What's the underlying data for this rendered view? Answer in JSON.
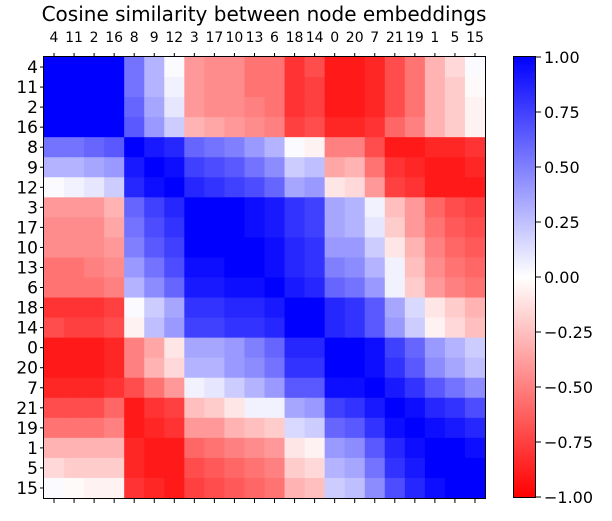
{
  "chart_data": {
    "type": "heatmap",
    "title": "Cosine similarity between node embeddings",
    "xlabel": "",
    "ylabel": "",
    "x_labels": [
      "4",
      "11",
      "2",
      "16",
      "8",
      "9",
      "12",
      "3",
      "17",
      "10",
      "13",
      "6",
      "18",
      "14",
      "0",
      "20",
      "7",
      "21",
      "19",
      "1",
      "5",
      "15"
    ],
    "y_labels": [
      "4",
      "11",
      "2",
      "16",
      "8",
      "9",
      "12",
      "3",
      "17",
      "10",
      "13",
      "6",
      "18",
      "14",
      "0",
      "20",
      "7",
      "21",
      "19",
      "1",
      "5",
      "15"
    ],
    "vmin": -1.0,
    "vmax": 1.0,
    "colormap": "bwr_r (blue = 1, white = 0, red = -1)",
    "colorbar_ticks": [
      "1.00",
      "0.75",
      "0.50",
      "0.25",
      "0.00",
      "−0.25",
      "−0.50",
      "−0.75",
      "−1.00"
    ],
    "colorbar_tick_values": [
      1.0,
      0.75,
      0.5,
      0.25,
      0.0,
      -0.25,
      -0.5,
      -0.75,
      -1.0
    ],
    "values": [
      [
        1.0,
        1.0,
        1.0,
        1.0,
        0.55,
        0.3,
        0.02,
        -0.4,
        -0.45,
        -0.45,
        -0.55,
        -0.55,
        -0.8,
        -0.7,
        -0.9,
        -0.9,
        -0.85,
        -0.7,
        -0.55,
        -0.3,
        -0.15,
        0.02
      ],
      [
        1.0,
        1.0,
        1.0,
        1.0,
        0.55,
        0.3,
        0.05,
        -0.4,
        -0.45,
        -0.45,
        -0.55,
        -0.55,
        -0.8,
        -0.75,
        -0.9,
        -0.9,
        -0.85,
        -0.7,
        -0.55,
        -0.3,
        -0.2,
        -0.02
      ],
      [
        1.0,
        1.0,
        1.0,
        1.0,
        0.6,
        0.35,
        0.1,
        -0.4,
        -0.45,
        -0.45,
        -0.5,
        -0.55,
        -0.8,
        -0.75,
        -0.9,
        -0.9,
        -0.85,
        -0.7,
        -0.55,
        -0.3,
        -0.2,
        -0.05
      ],
      [
        1.0,
        1.0,
        1.0,
        1.0,
        0.65,
        0.4,
        0.2,
        -0.3,
        -0.35,
        -0.4,
        -0.45,
        -0.5,
        -0.75,
        -0.7,
        -0.85,
        -0.85,
        -0.8,
        -0.6,
        -0.5,
        -0.3,
        -0.2,
        -0.05
      ],
      [
        0.55,
        0.55,
        0.6,
        0.65,
        1.0,
        0.9,
        0.85,
        0.6,
        0.55,
        0.5,
        0.4,
        0.3,
        0.02,
        -0.05,
        -0.5,
        -0.5,
        -0.7,
        -0.9,
        -0.9,
        -0.85,
        -0.85,
        -0.8
      ],
      [
        0.3,
        0.3,
        0.35,
        0.4,
        0.9,
        1.0,
        0.95,
        0.75,
        0.7,
        0.65,
        0.55,
        0.45,
        0.2,
        0.25,
        -0.35,
        -0.3,
        -0.55,
        -0.8,
        -0.85,
        -0.9,
        -0.9,
        -0.85
      ],
      [
        0.02,
        0.05,
        0.1,
        0.2,
        0.85,
        0.95,
        1.0,
        0.85,
        0.8,
        0.75,
        0.7,
        0.6,
        0.35,
        0.4,
        -0.1,
        -0.15,
        -0.4,
        -0.75,
        -0.8,
        -0.9,
        -0.9,
        -0.9
      ],
      [
        -0.4,
        -0.4,
        -0.4,
        -0.3,
        0.6,
        0.75,
        0.85,
        1.0,
        1.0,
        1.0,
        0.95,
        0.9,
        0.8,
        0.75,
        0.35,
        0.3,
        0.05,
        -0.25,
        -0.4,
        -0.6,
        -0.7,
        -0.75
      ],
      [
        -0.45,
        -0.45,
        -0.45,
        -0.35,
        0.55,
        0.7,
        0.8,
        1.0,
        1.0,
        1.0,
        0.95,
        0.9,
        0.8,
        0.75,
        0.35,
        0.3,
        0.1,
        -0.2,
        -0.4,
        -0.55,
        -0.65,
        -0.7
      ],
      [
        -0.45,
        -0.45,
        -0.45,
        -0.4,
        0.5,
        0.65,
        0.75,
        1.0,
        1.0,
        1.0,
        1.0,
        0.95,
        0.85,
        0.8,
        0.4,
        0.4,
        0.2,
        -0.1,
        -0.3,
        -0.5,
        -0.6,
        -0.65
      ],
      [
        -0.55,
        -0.55,
        -0.5,
        -0.45,
        0.4,
        0.55,
        0.7,
        0.95,
        0.95,
        1.0,
        1.0,
        0.95,
        0.85,
        0.8,
        0.5,
        0.45,
        0.3,
        0.05,
        -0.25,
        -0.45,
        -0.55,
        -0.6
      ],
      [
        -0.55,
        -0.55,
        -0.55,
        -0.5,
        0.3,
        0.45,
        0.6,
        0.9,
        0.9,
        0.95,
        0.95,
        1.0,
        0.9,
        0.85,
        0.6,
        0.55,
        0.4,
        0.05,
        -0.2,
        -0.4,
        -0.5,
        -0.55
      ],
      [
        -0.8,
        -0.8,
        -0.8,
        -0.75,
        0.02,
        0.2,
        0.35,
        0.8,
        0.8,
        0.85,
        0.85,
        0.9,
        1.0,
        1.0,
        0.85,
        0.8,
        0.65,
        0.35,
        0.15,
        -0.1,
        -0.2,
        -0.3
      ],
      [
        -0.7,
        -0.75,
        -0.75,
        -0.7,
        -0.05,
        0.25,
        0.4,
        0.75,
        0.75,
        0.8,
        0.8,
        0.85,
        1.0,
        1.0,
        0.85,
        0.8,
        0.65,
        0.4,
        0.2,
        -0.05,
        -0.15,
        -0.25
      ],
      [
        -0.9,
        -0.9,
        -0.9,
        -0.85,
        -0.5,
        -0.35,
        -0.1,
        0.35,
        0.35,
        0.4,
        0.5,
        0.6,
        0.85,
        0.85,
        1.0,
        1.0,
        0.95,
        0.75,
        0.6,
        0.4,
        0.3,
        0.2
      ],
      [
        -0.9,
        -0.9,
        -0.9,
        -0.85,
        -0.5,
        -0.3,
        -0.15,
        0.3,
        0.3,
        0.4,
        0.45,
        0.55,
        0.8,
        0.8,
        1.0,
        1.0,
        0.95,
        0.8,
        0.65,
        0.45,
        0.35,
        0.25
      ],
      [
        -0.85,
        -0.85,
        -0.85,
        -0.8,
        -0.7,
        -0.55,
        -0.4,
        0.05,
        0.1,
        0.2,
        0.3,
        0.4,
        0.65,
        0.65,
        0.95,
        0.95,
        1.0,
        0.9,
        0.8,
        0.65,
        0.55,
        0.45
      ],
      [
        -0.7,
        -0.7,
        -0.7,
        -0.6,
        -0.9,
        -0.8,
        -0.75,
        -0.25,
        -0.2,
        -0.1,
        0.05,
        0.05,
        0.35,
        0.4,
        0.75,
        0.8,
        0.9,
        1.0,
        0.95,
        0.85,
        0.8,
        0.7
      ],
      [
        -0.55,
        -0.55,
        -0.55,
        -0.5,
        -0.9,
        -0.85,
        -0.8,
        -0.4,
        -0.4,
        -0.3,
        -0.25,
        -0.2,
        0.15,
        0.2,
        0.6,
        0.65,
        0.8,
        0.95,
        1.0,
        0.95,
        0.9,
        0.85
      ],
      [
        -0.3,
        -0.3,
        -0.3,
        -0.3,
        -0.85,
        -0.9,
        -0.9,
        -0.6,
        -0.55,
        -0.5,
        -0.45,
        -0.4,
        -0.1,
        -0.05,
        0.4,
        0.45,
        0.65,
        0.85,
        0.95,
        1.0,
        1.0,
        0.95
      ],
      [
        -0.15,
        -0.2,
        -0.2,
        -0.2,
        -0.85,
        -0.9,
        -0.9,
        -0.7,
        -0.65,
        -0.6,
        -0.55,
        -0.5,
        -0.2,
        -0.15,
        0.3,
        0.35,
        0.55,
        0.8,
        0.9,
        1.0,
        1.0,
        1.0
      ],
      [
        0.02,
        -0.02,
        -0.05,
        -0.05,
        -0.8,
        -0.85,
        -0.9,
        -0.75,
        -0.7,
        -0.65,
        -0.6,
        -0.55,
        -0.3,
        -0.25,
        0.2,
        0.25,
        0.45,
        0.7,
        0.85,
        0.95,
        1.0,
        1.0
      ]
    ]
  }
}
